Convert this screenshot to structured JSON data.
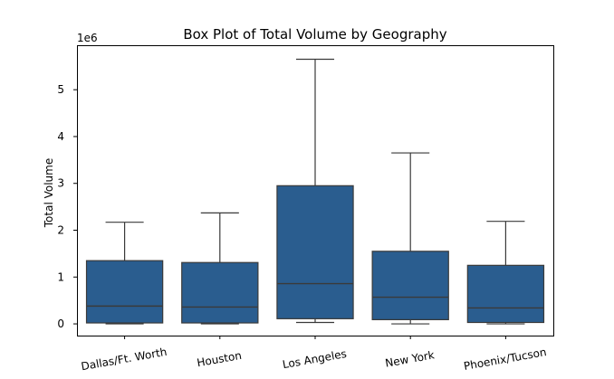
{
  "chart_data": {
    "type": "box",
    "title": "Box Plot of Total Volume by Geography",
    "xlabel": "",
    "ylabel": "Total Volume",
    "offset_text": "1e6",
    "y_scale_factor": 1000000,
    "ylim": [
      -0.25,
      5.95
    ],
    "yticks": [
      0,
      1,
      2,
      3,
      4,
      5
    ],
    "grid": false,
    "legend": "none",
    "box_color": "#2a5d8f",
    "line_color": "#3a3a3a",
    "categories": [
      "Dallas/Ft. Worth",
      "Houston",
      "Los Angeles",
      "New York",
      "Phoenix/Tucson"
    ],
    "boxes": [
      {
        "category": "Dallas/Ft. Worth",
        "whisker_low": 0.0,
        "q1": 0.02,
        "median": 0.38,
        "q3": 1.35,
        "whisker_high": 2.17
      },
      {
        "category": "Houston",
        "whisker_low": 0.0,
        "q1": 0.02,
        "median": 0.36,
        "q3": 1.31,
        "whisker_high": 2.37
      },
      {
        "category": "Los Angeles",
        "whisker_low": 0.03,
        "q1": 0.11,
        "median": 0.86,
        "q3": 2.95,
        "whisker_high": 5.65
      },
      {
        "category": "New York",
        "whisker_low": 0.0,
        "q1": 0.09,
        "median": 0.57,
        "q3": 1.55,
        "whisker_high": 3.65
      },
      {
        "category": "Phoenix/Tucson",
        "whisker_low": 0.0,
        "q1": 0.03,
        "median": 0.34,
        "q3": 1.25,
        "whisker_high": 2.19
      }
    ]
  }
}
